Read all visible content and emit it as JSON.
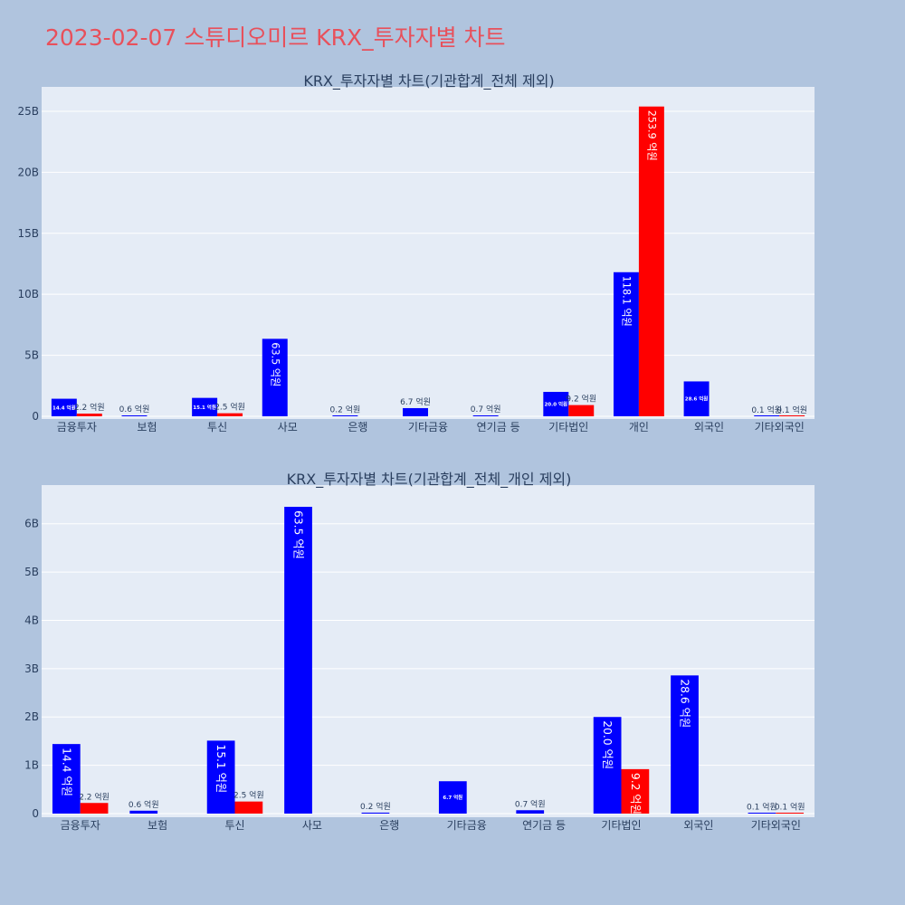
{
  "page": {
    "title": "2023-02-07 스튜디오미르 KRX_투자자별 차트"
  },
  "chart_data": [
    {
      "type": "bar",
      "title": "KRX_투자자별 차트(기관합계_전체 제외)",
      "categories": [
        "금융투자",
        "보험",
        "투신",
        "사모",
        "은행",
        "기타금융",
        "연기금 등",
        "기타법인",
        "개인",
        "외국인",
        "기타외국인"
      ],
      "series": [
        {
          "key": "blue",
          "color": "#0000ff",
          "values": [
            1440000000,
            60000000,
            1510000000,
            6350000000,
            20000000,
            670000000,
            70000000,
            2000000000,
            11810000000,
            2860000000,
            10000000
          ],
          "labels": [
            "14.4 억원",
            "0.6 억원",
            "15.1 억원",
            "63.5 억원",
            "0.2 억원",
            "6.7 억원",
            "0.7 억원",
            "20.0 억원",
            "118.1 억원",
            "28.6 억원",
            "0.1 억원"
          ]
        },
        {
          "key": "red",
          "color": "#ff0000",
          "values": [
            220000000,
            0,
            250000000,
            0,
            0,
            0,
            0,
            920000000,
            25390000000,
            0,
            10000000
          ],
          "labels": [
            "2.2 억원",
            "",
            "2.5 억원",
            "",
            "",
            "",
            "",
            "9.2 억원",
            "253.9 억원",
            "",
            "0.1 억원"
          ]
        }
      ],
      "yticks": [
        0,
        5000000000,
        10000000000,
        15000000000,
        20000000000,
        25000000000
      ],
      "ytick_labels": [
        "0",
        "5B",
        "10B",
        "15B",
        "20B",
        "25B"
      ],
      "ylim": [
        0,
        27000000000
      ],
      "grid": true
    },
    {
      "type": "bar",
      "title": "KRX_투자자별 차트(기관합계_전체_개인 제외)",
      "categories": [
        "금융투자",
        "보험",
        "투신",
        "사모",
        "은행",
        "기타금융",
        "연기금 등",
        "기타법인",
        "외국인",
        "기타외국인"
      ],
      "series": [
        {
          "key": "blue",
          "color": "#0000ff",
          "values": [
            1440000000,
            60000000,
            1510000000,
            6350000000,
            20000000,
            670000000,
            70000000,
            2000000000,
            2860000000,
            10000000
          ],
          "labels": [
            "14.4 억원",
            "0.6 억원",
            "15.1 억원",
            "63.5 억원",
            "0.2 억원",
            "6.7 억원",
            "0.7 억원",
            "20.0 억원",
            "28.6 억원",
            "0.1 억원"
          ]
        },
        {
          "key": "red",
          "color": "#ff0000",
          "values": [
            220000000,
            0,
            250000000,
            0,
            0,
            0,
            0,
            920000000,
            0,
            10000000
          ],
          "labels": [
            "2.2 억원",
            "",
            "2.5 억원",
            "",
            "",
            "",
            "",
            "9.2 억원",
            "",
            "0.1 억원"
          ]
        }
      ],
      "yticks": [
        0,
        1000000000,
        2000000000,
        3000000000,
        4000000000,
        5000000000,
        6000000000
      ],
      "ytick_labels": [
        "0",
        "1B",
        "2B",
        "3B",
        "4B",
        "5B",
        "6B"
      ],
      "ylim": [
        0,
        6800000000
      ],
      "grid": true
    }
  ]
}
